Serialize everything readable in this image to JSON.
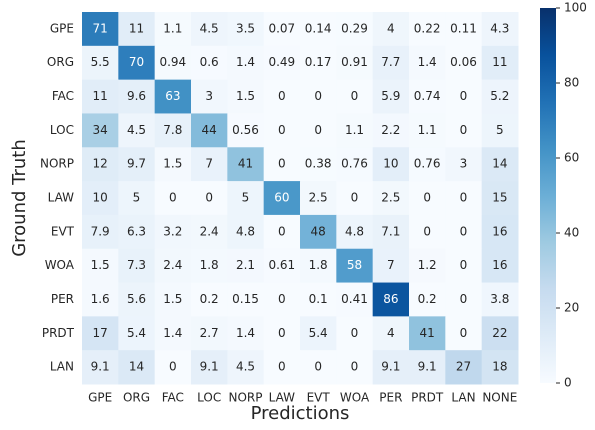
{
  "chart_data": {
    "type": "heatmap",
    "xlabel": "Predictions",
    "ylabel": "Ground Truth",
    "x_categories": [
      "GPE",
      "ORG",
      "FAC",
      "LOC",
      "NORP",
      "LAW",
      "EVT",
      "WOA",
      "PER",
      "PRDT",
      "LAN",
      "NONE"
    ],
    "y_categories": [
      "GPE",
      "ORG",
      "FAC",
      "LOC",
      "NORP",
      "LAW",
      "EVT",
      "WOA",
      "PER",
      "PRDT",
      "LAN"
    ],
    "values": [
      [
        71,
        11,
        1.1,
        4.5,
        3.5,
        0.07,
        0.14,
        0.29,
        4,
        0.22,
        0.11,
        4.3
      ],
      [
        5.5,
        70,
        0.94,
        0.6,
        1.4,
        0.49,
        0.17,
        0.91,
        7.7,
        1.4,
        0.06,
        11
      ],
      [
        11,
        9.6,
        63,
        3,
        1.5,
        0,
        0,
        0,
        5.9,
        0.74,
        0,
        5.2
      ],
      [
        34,
        4.5,
        7.8,
        44,
        0.56,
        0,
        0,
        1.1,
        2.2,
        1.1,
        0,
        5
      ],
      [
        12,
        9.7,
        1.5,
        7,
        41,
        0,
        0.38,
        0.76,
        10,
        0.76,
        3,
        14
      ],
      [
        10,
        5,
        0,
        0,
        5,
        60,
        2.5,
        0,
        2.5,
        0,
        0,
        15
      ],
      [
        7.9,
        6.3,
        3.2,
        2.4,
        4.8,
        0,
        48,
        4.8,
        7.1,
        0,
        0,
        16
      ],
      [
        1.5,
        7.3,
        2.4,
        1.8,
        2.1,
        0.61,
        1.8,
        58,
        7,
        1.2,
        0,
        16
      ],
      [
        1.6,
        5.6,
        1.5,
        0.2,
        0.15,
        0,
        0.1,
        0.41,
        86,
        0.2,
        0,
        3.8
      ],
      [
        17,
        5.4,
        1.4,
        2.7,
        1.4,
        0,
        5.4,
        0,
        4,
        41,
        0,
        22
      ],
      [
        9.1,
        14,
        0,
        9.1,
        4.5,
        0,
        0,
        0,
        9.1,
        9.1,
        27,
        18
      ]
    ],
    "colorscale": [
      "#f7fbff",
      "#deebf7",
      "#c6dbef",
      "#9ecae1",
      "#6baed6",
      "#4292c6",
      "#2171b5",
      "#08519c",
      "#08306b"
    ],
    "clim": [
      0,
      100
    ],
    "cticks": [
      0,
      20,
      40,
      60,
      80,
      100
    ]
  }
}
